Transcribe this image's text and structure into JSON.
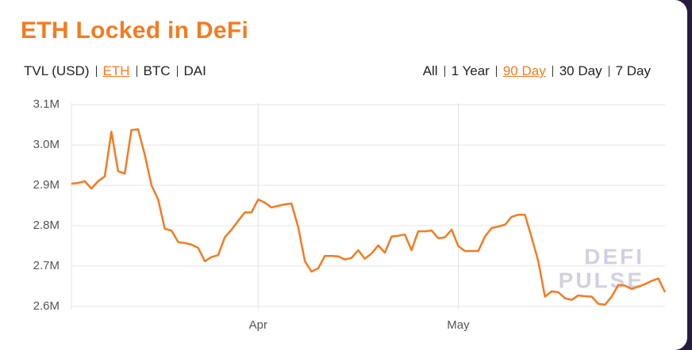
{
  "title": "ETH Locked in DeFi",
  "currency_options": [
    "TVL (USD)",
    "ETH",
    "BTC",
    "DAI"
  ],
  "currency_selected_index": 1,
  "period_options": [
    "All",
    "1 Year",
    "90 Day",
    "30 Day",
    "7 Day"
  ],
  "period_selected_index": 2,
  "watermark": [
    "DEFI",
    "PULSE"
  ],
  "chart_data": {
    "type": "line",
    "color": "#f47b20",
    "grid": true,
    "categories": [
      null,
      null,
      null,
      null,
      null,
      null,
      null,
      null,
      null,
      null,
      null,
      null,
      null,
      null,
      null,
      null,
      null,
      null,
      null,
      null,
      null,
      null,
      null,
      null,
      null,
      null,
      null,
      null,
      "Apr",
      null,
      null,
      null,
      null,
      null,
      null,
      null,
      null,
      null,
      null,
      null,
      null,
      null,
      null,
      null,
      null,
      null,
      null,
      null,
      null,
      null,
      null,
      null,
      null,
      null,
      null,
      null,
      null,
      null,
      "May",
      null,
      null,
      null,
      null,
      null,
      null,
      null,
      null,
      null,
      null,
      null,
      null,
      null,
      null,
      null,
      null,
      null,
      null,
      null,
      null,
      null,
      null,
      null,
      null,
      null,
      null,
      null,
      null,
      null,
      null,
      null
    ],
    "values": [
      2904000,
      2906000,
      2910000,
      2892000,
      2910000,
      2922000,
      3033000,
      2935000,
      2929000,
      3037000,
      3039000,
      2976000,
      2900000,
      2865000,
      2792000,
      2788000,
      2759000,
      2757000,
      2753000,
      2745000,
      2712000,
      2722000,
      2727000,
      2771000,
      2790000,
      2812000,
      2833000,
      2833000,
      2865000,
      2857000,
      2845000,
      2849000,
      2853000,
      2855000,
      2796000,
      2712000,
      2686000,
      2694000,
      2725000,
      2725000,
      2724000,
      2716000,
      2720000,
      2739000,
      2718000,
      2731000,
      2751000,
      2733000,
      2773000,
      2775000,
      2778000,
      2739000,
      2786000,
      2786000,
      2788000,
      2769000,
      2771000,
      2790000,
      2749000,
      2737000,
      2737000,
      2737000,
      2773000,
      2794000,
      2798000,
      2802000,
      2822000,
      2827000,
      2827000,
      2771000,
      2712000,
      2624000,
      2637000,
      2635000,
      2620000,
      2616000,
      2627000,
      2625000,
      2624000,
      2606000,
      2604000,
      2624000,
      2653000,
      2651000,
      2643000,
      2649000,
      2655000,
      2663000,
      2669000,
      2635000
    ],
    "ylim": [
      2580000,
      3120000
    ],
    "yticks": [
      {
        "value": 2600000,
        "label": "2.6M"
      },
      {
        "value": 2700000,
        "label": "2.7M"
      },
      {
        "value": 2800000,
        "label": "2.8M"
      },
      {
        "value": 2900000,
        "label": "2.9M"
      },
      {
        "value": 3000000,
        "label": "3.0M"
      },
      {
        "value": 3100000,
        "label": "3.1M"
      }
    ]
  }
}
